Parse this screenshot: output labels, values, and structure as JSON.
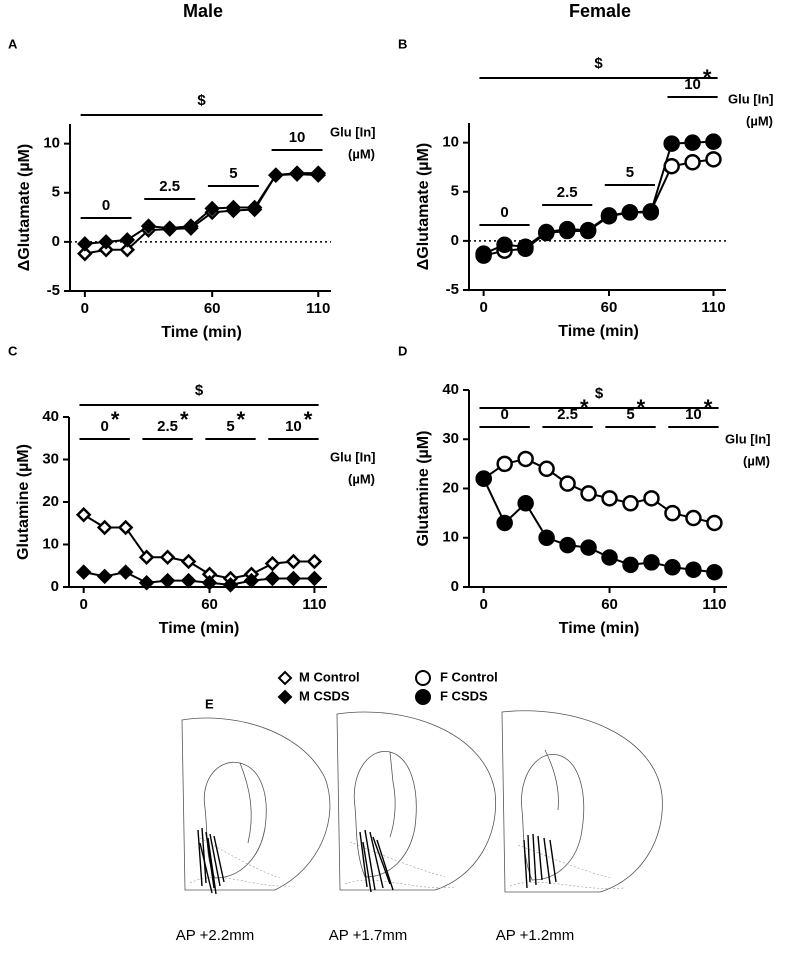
{
  "columns": [
    "Male",
    "Female"
  ],
  "chart_data": [
    {
      "type": "line",
      "panel": "A",
      "marker": "diamond",
      "significance": "$",
      "phase_title": "Glu [In]",
      "phase_unit": "(µM)",
      "xlabel": "Time (min)",
      "ylabel": "ΔGlutamate (µM)",
      "x": [
        0,
        10,
        20,
        30,
        40,
        50,
        60,
        70,
        80,
        90,
        100,
        110
      ],
      "xlim": [
        -7,
        116
      ],
      "xticks": [
        0,
        60,
        110
      ],
      "ylim": [
        -5,
        12
      ],
      "yticks": [
        -5,
        0,
        5,
        10
      ],
      "zero_line": true,
      "phases": [
        {
          "label": "0"
        },
        {
          "label": "2.5"
        },
        {
          "label": "5"
        },
        {
          "label": "10"
        }
      ],
      "series": [
        {
          "name": "M Control",
          "color": "#ffffff",
          "values": [
            -1.2,
            -0.8,
            -0.8,
            1.2,
            1.3,
            1.4,
            3.0,
            3.2,
            3.3,
            6.8,
            6.9,
            6.8
          ]
        },
        {
          "name": "M CSDS",
          "color": "#000000",
          "values": [
            -0.2,
            0,
            0.2,
            1.6,
            1.4,
            1.6,
            3.4,
            3.5,
            3.5,
            6.8,
            7.0,
            7.0
          ]
        }
      ]
    },
    {
      "type": "line",
      "panel": "B",
      "marker": "circle",
      "significance": "$",
      "phase_title": "Glu [In]",
      "phase_unit": "(µM)",
      "xlabel": "Time (min)",
      "ylabel": "ΔGlutamate (µM)",
      "x": [
        0,
        10,
        20,
        30,
        40,
        50,
        60,
        70,
        80,
        90,
        100,
        110
      ],
      "xlim": [
        -7,
        116
      ],
      "xticks": [
        0,
        60,
        110
      ],
      "ylim": [
        -5,
        12
      ],
      "yticks": [
        -5,
        0,
        5,
        10
      ],
      "zero_line": true,
      "phases": [
        {
          "label": "0"
        },
        {
          "label": "2.5"
        },
        {
          "label": "5"
        },
        {
          "label": "10",
          "star": "*"
        }
      ],
      "series": [
        {
          "name": "F Control",
          "color": "#ffffff",
          "values": [
            -1.5,
            -1.0,
            -0.8,
            0.8,
            1.0,
            1.0,
            2.5,
            2.9,
            3.0,
            7.6,
            8.0,
            8.3
          ]
        },
        {
          "name": "F CSDS",
          "color": "#000000",
          "values": [
            -1.3,
            -0.4,
            -0.6,
            0.9,
            1.2,
            1.1,
            2.6,
            2.9,
            2.9,
            9.9,
            10.0,
            10.1
          ]
        }
      ]
    },
    {
      "type": "line",
      "panel": "C",
      "marker": "diamond",
      "significance": "$",
      "phase_title": "Glu [In]",
      "phase_unit": "(µM)",
      "xlabel": "Time (min)",
      "ylabel": "Glutamine (µM)",
      "x": [
        0,
        10,
        20,
        30,
        40,
        50,
        60,
        70,
        80,
        90,
        100,
        110
      ],
      "xlim": [
        -7,
        116
      ],
      "xticks": [
        0,
        60,
        110
      ],
      "ylim": [
        0,
        40
      ],
      "yticks": [
        0,
        10,
        20,
        30,
        40
      ],
      "zero_line": false,
      "phases": [
        {
          "label": "0",
          "star": "*"
        },
        {
          "label": "2.5",
          "star": "*"
        },
        {
          "label": "5",
          "star": "*"
        },
        {
          "label": "10",
          "star": "*"
        }
      ],
      "series": [
        {
          "name": "M Control",
          "color": "#ffffff",
          "values": [
            17,
            14,
            14,
            7,
            7,
            6,
            3,
            2,
            3,
            5.5,
            6,
            6
          ]
        },
        {
          "name": "M CSDS",
          "color": "#000000",
          "values": [
            3.5,
            2.5,
            3.5,
            1,
            1.5,
            1.5,
            1,
            0.5,
            1.5,
            2,
            2,
            2
          ]
        }
      ]
    },
    {
      "type": "line",
      "panel": "D",
      "marker": "circle",
      "significance": "$",
      "phase_title": "Glu [In]",
      "phase_unit": "(µM)",
      "xlabel": "Time (min)",
      "ylabel": "Glutamine (µM)",
      "x": [
        0,
        10,
        20,
        30,
        40,
        50,
        60,
        70,
        80,
        90,
        100,
        110
      ],
      "xlim": [
        -7,
        116
      ],
      "xticks": [
        0,
        60,
        110
      ],
      "ylim": [
        0,
        40
      ],
      "yticks": [
        0,
        10,
        20,
        30,
        40
      ],
      "zero_line": false,
      "phases": [
        {
          "label": "0"
        },
        {
          "label": "2.5",
          "star": "*"
        },
        {
          "label": "5",
          "star": "*"
        },
        {
          "label": "10",
          "star": "*"
        }
      ],
      "series": [
        {
          "name": "F Control",
          "color": "#ffffff",
          "values": [
            22,
            25,
            26,
            24,
            21,
            19,
            18,
            17,
            18,
            15,
            14,
            13
          ]
        },
        {
          "name": "F CSDS",
          "color": "#000000",
          "values": [
            22,
            13,
            17,
            10,
            8.5,
            8,
            6,
            4.5,
            5,
            4,
            3.5,
            3
          ]
        }
      ]
    }
  ],
  "panel_e": {
    "panel": "E",
    "sections": [
      "AP +2.2mm",
      "AP +1.7mm",
      "AP +1.2mm"
    ]
  }
}
